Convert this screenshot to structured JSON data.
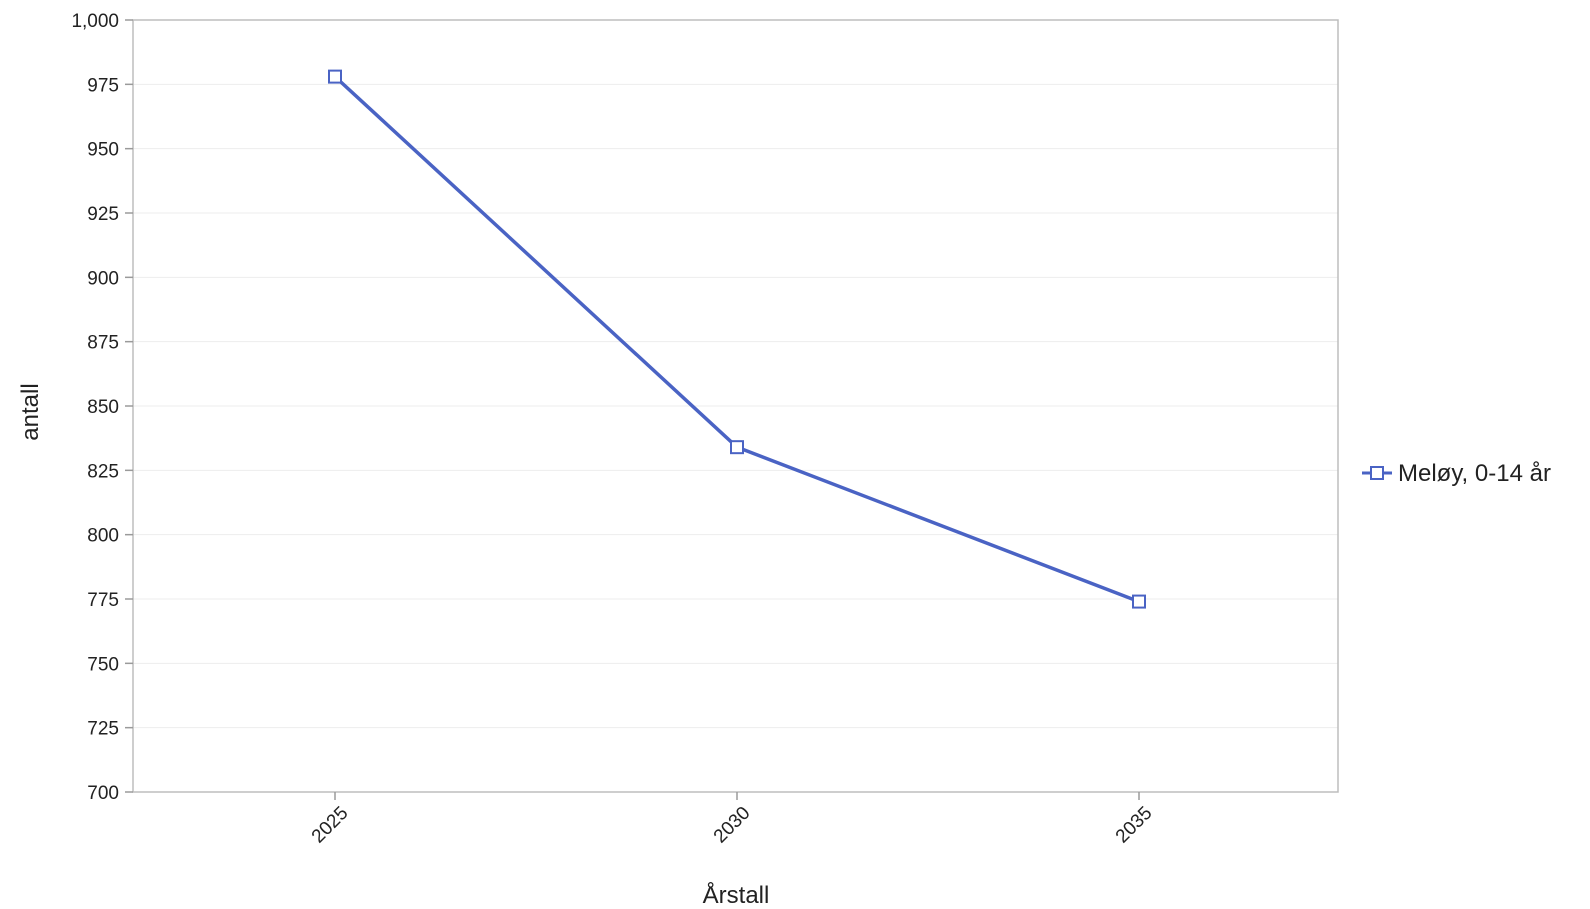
{
  "chart_data": {
    "type": "line",
    "title": "",
    "xlabel": "Årstall",
    "ylabel": "antall",
    "categories": [
      "2025",
      "2030",
      "2035"
    ],
    "series": [
      {
        "name": "Meløy, 0-14 år",
        "values": [
          978,
          834,
          774
        ],
        "color": "#4a63c4",
        "marker": "square"
      }
    ],
    "ylim": [
      700,
      1000
    ],
    "yticks": [
      700,
      725,
      750,
      775,
      800,
      825,
      850,
      875,
      900,
      925,
      950,
      975,
      1000
    ],
    "ytick_labels": [
      "700",
      "725",
      "750",
      "775",
      "800",
      "825",
      "850",
      "875",
      "900",
      "925",
      "950",
      "975",
      "1,000"
    ],
    "grid": true,
    "legend_position": "right"
  }
}
